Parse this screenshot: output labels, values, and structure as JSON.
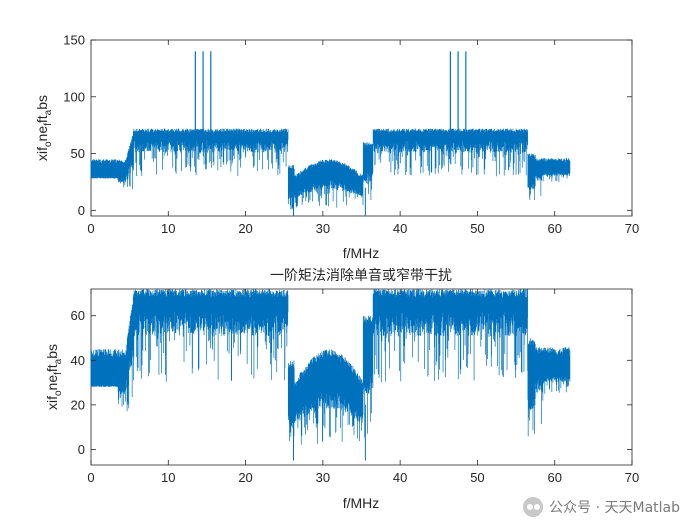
{
  "chart_data": [
    {
      "type": "line",
      "title": "",
      "xlabel": "f/MHz",
      "ylabel": "xif_o_ne_f_ft_a_bs",
      "ylabel_main": "xif",
      "ylabel_sub1": "o",
      "ylabel_mid1": "ne",
      "ylabel_sub2": "f",
      "ylabel_mid2": "ft",
      "ylabel_sub3": "a",
      "ylabel_end": "bs",
      "xlim": [
        0,
        70
      ],
      "ylim": [
        -5,
        150
      ],
      "xticks": [
        "0",
        "10",
        "20",
        "30",
        "40",
        "50",
        "60",
        "70"
      ],
      "yticks": [
        "0",
        "50",
        "100",
        "150"
      ],
      "color": "#0072BD",
      "grid": false,
      "spikes": [
        {
          "x": 13.5,
          "y": 140
        },
        {
          "x": 14.5,
          "y": 140
        },
        {
          "x": 15.5,
          "y": 140
        },
        {
          "x": 46.5,
          "y": 140
        },
        {
          "x": 47.5,
          "y": 140
        },
        {
          "x": 48.5,
          "y": 140
        }
      ]
    },
    {
      "type": "line",
      "title": "一阶矩法消除单音或窄带干扰",
      "xlabel": "f/MHz",
      "ylabel": "xif_o_ne_f_ft_a_bs",
      "ylabel_main": "xif",
      "ylabel_sub1": "o",
      "ylabel_mid1": "ne",
      "ylabel_sub2": "f",
      "ylabel_mid2": "ft",
      "ylabel_sub3": "a",
      "ylabel_end": "bs",
      "xlim": [
        0,
        70
      ],
      "ylim": [
        -7,
        72
      ],
      "xticks": [
        "0",
        "10",
        "20",
        "30",
        "40",
        "50",
        "60",
        "70"
      ],
      "yticks": [
        "0",
        "20",
        "40",
        "60"
      ],
      "color": "#0072BD",
      "grid": false,
      "spikes": []
    }
  ],
  "watermark": {
    "text": "公众号 · 天天Matlab",
    "icon": "wechat-icon"
  }
}
